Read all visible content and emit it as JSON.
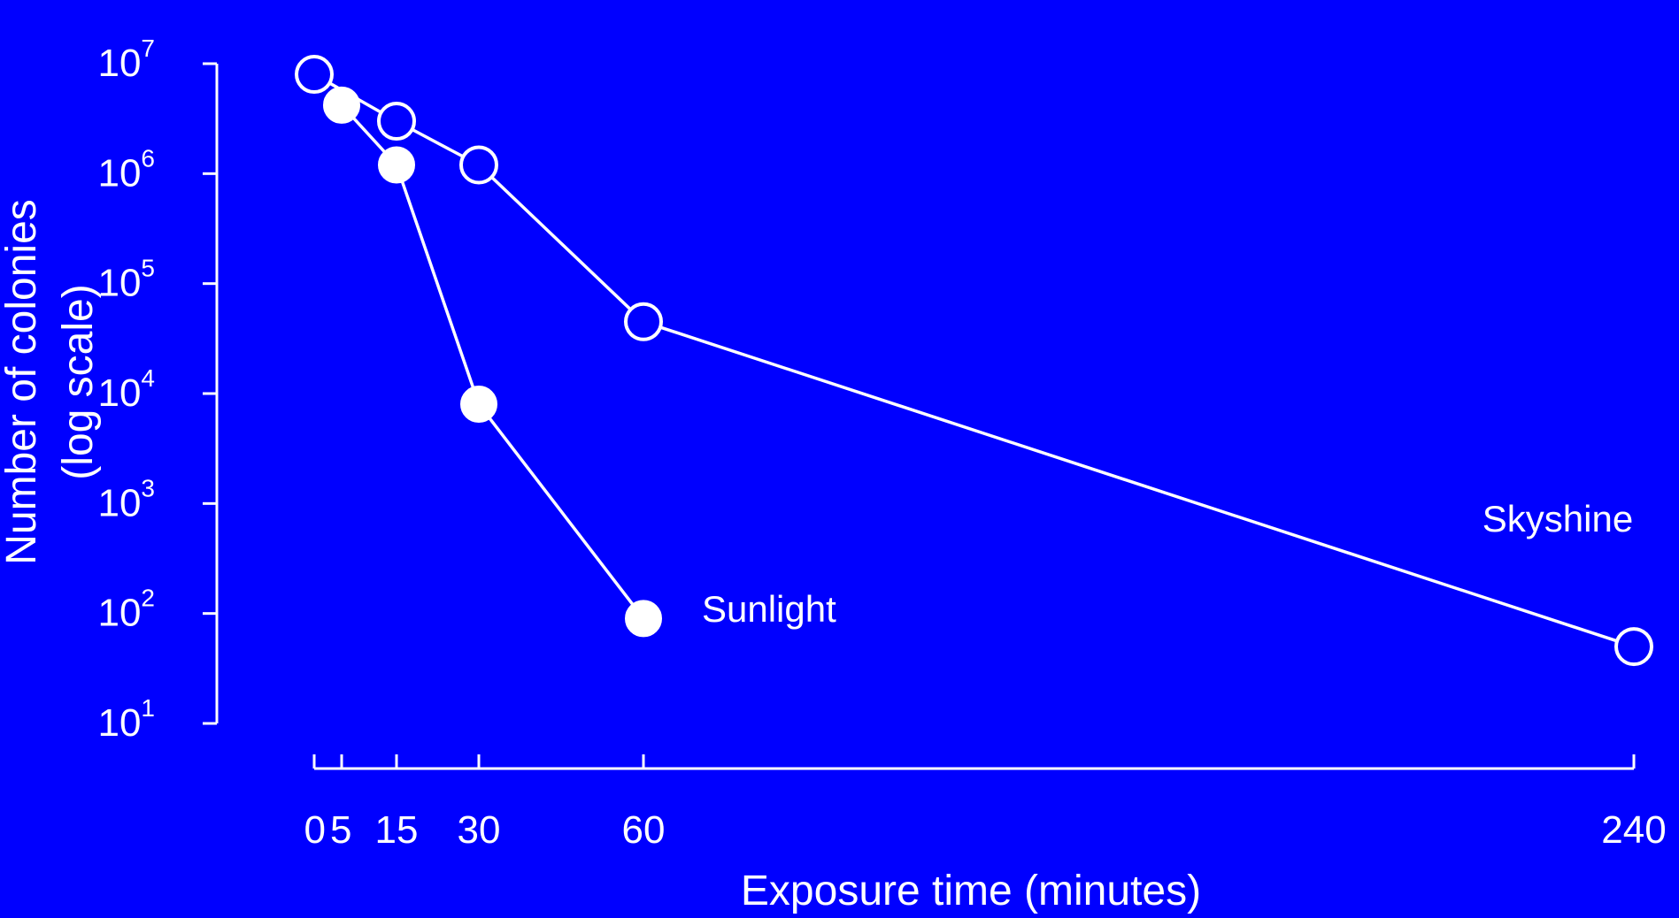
{
  "colors": {
    "background": "#0000ff",
    "foreground": "#ffffff"
  },
  "chart_data": {
    "type": "line",
    "title": "",
    "xlabel": "Exposure time (minutes)",
    "ylabel": [
      "Number of colonies",
      "(log scale)"
    ],
    "y_scale": "log",
    "x_axis_breaks": "tick positions are not uniform in data units",
    "ylim": [
      10,
      10000000
    ],
    "x_ticks": [
      {
        "label": "0",
        "value": 0
      },
      {
        "label": "5",
        "value": 5
      },
      {
        "label": "15",
        "value": 15
      },
      {
        "label": "30",
        "value": 30
      },
      {
        "label": "60",
        "value": 60
      },
      {
        "label": "240",
        "value": 240
      }
    ],
    "y_ticks": [
      {
        "base": "10",
        "exp": "1",
        "value": 10
      },
      {
        "base": "10",
        "exp": "2",
        "value": 100
      },
      {
        "base": "10",
        "exp": "3",
        "value": 1000
      },
      {
        "base": "10",
        "exp": "4",
        "value": 10000
      },
      {
        "base": "10",
        "exp": "5",
        "value": 100000
      },
      {
        "base": "10",
        "exp": "6",
        "value": 1000000
      },
      {
        "base": "10",
        "exp": "7",
        "value": 10000000
      }
    ],
    "grid": false,
    "legend": "none",
    "series": [
      {
        "name": "Skyshine",
        "marker": "open-circle",
        "points": [
          {
            "x": 0,
            "y": 8000000
          },
          {
            "x": 15,
            "y": 3000000
          },
          {
            "x": 30,
            "y": 1200000
          },
          {
            "x": 60,
            "y": 45000
          },
          {
            "x": 240,
            "y": 50
          }
        ]
      },
      {
        "name": "Sunlight",
        "marker": "filled-circle",
        "points": [
          {
            "x": 5,
            "y": 4200000
          },
          {
            "x": 15,
            "y": 1200000
          },
          {
            "x": 30,
            "y": 8000
          },
          {
            "x": 60,
            "y": 90
          }
        ]
      }
    ]
  }
}
